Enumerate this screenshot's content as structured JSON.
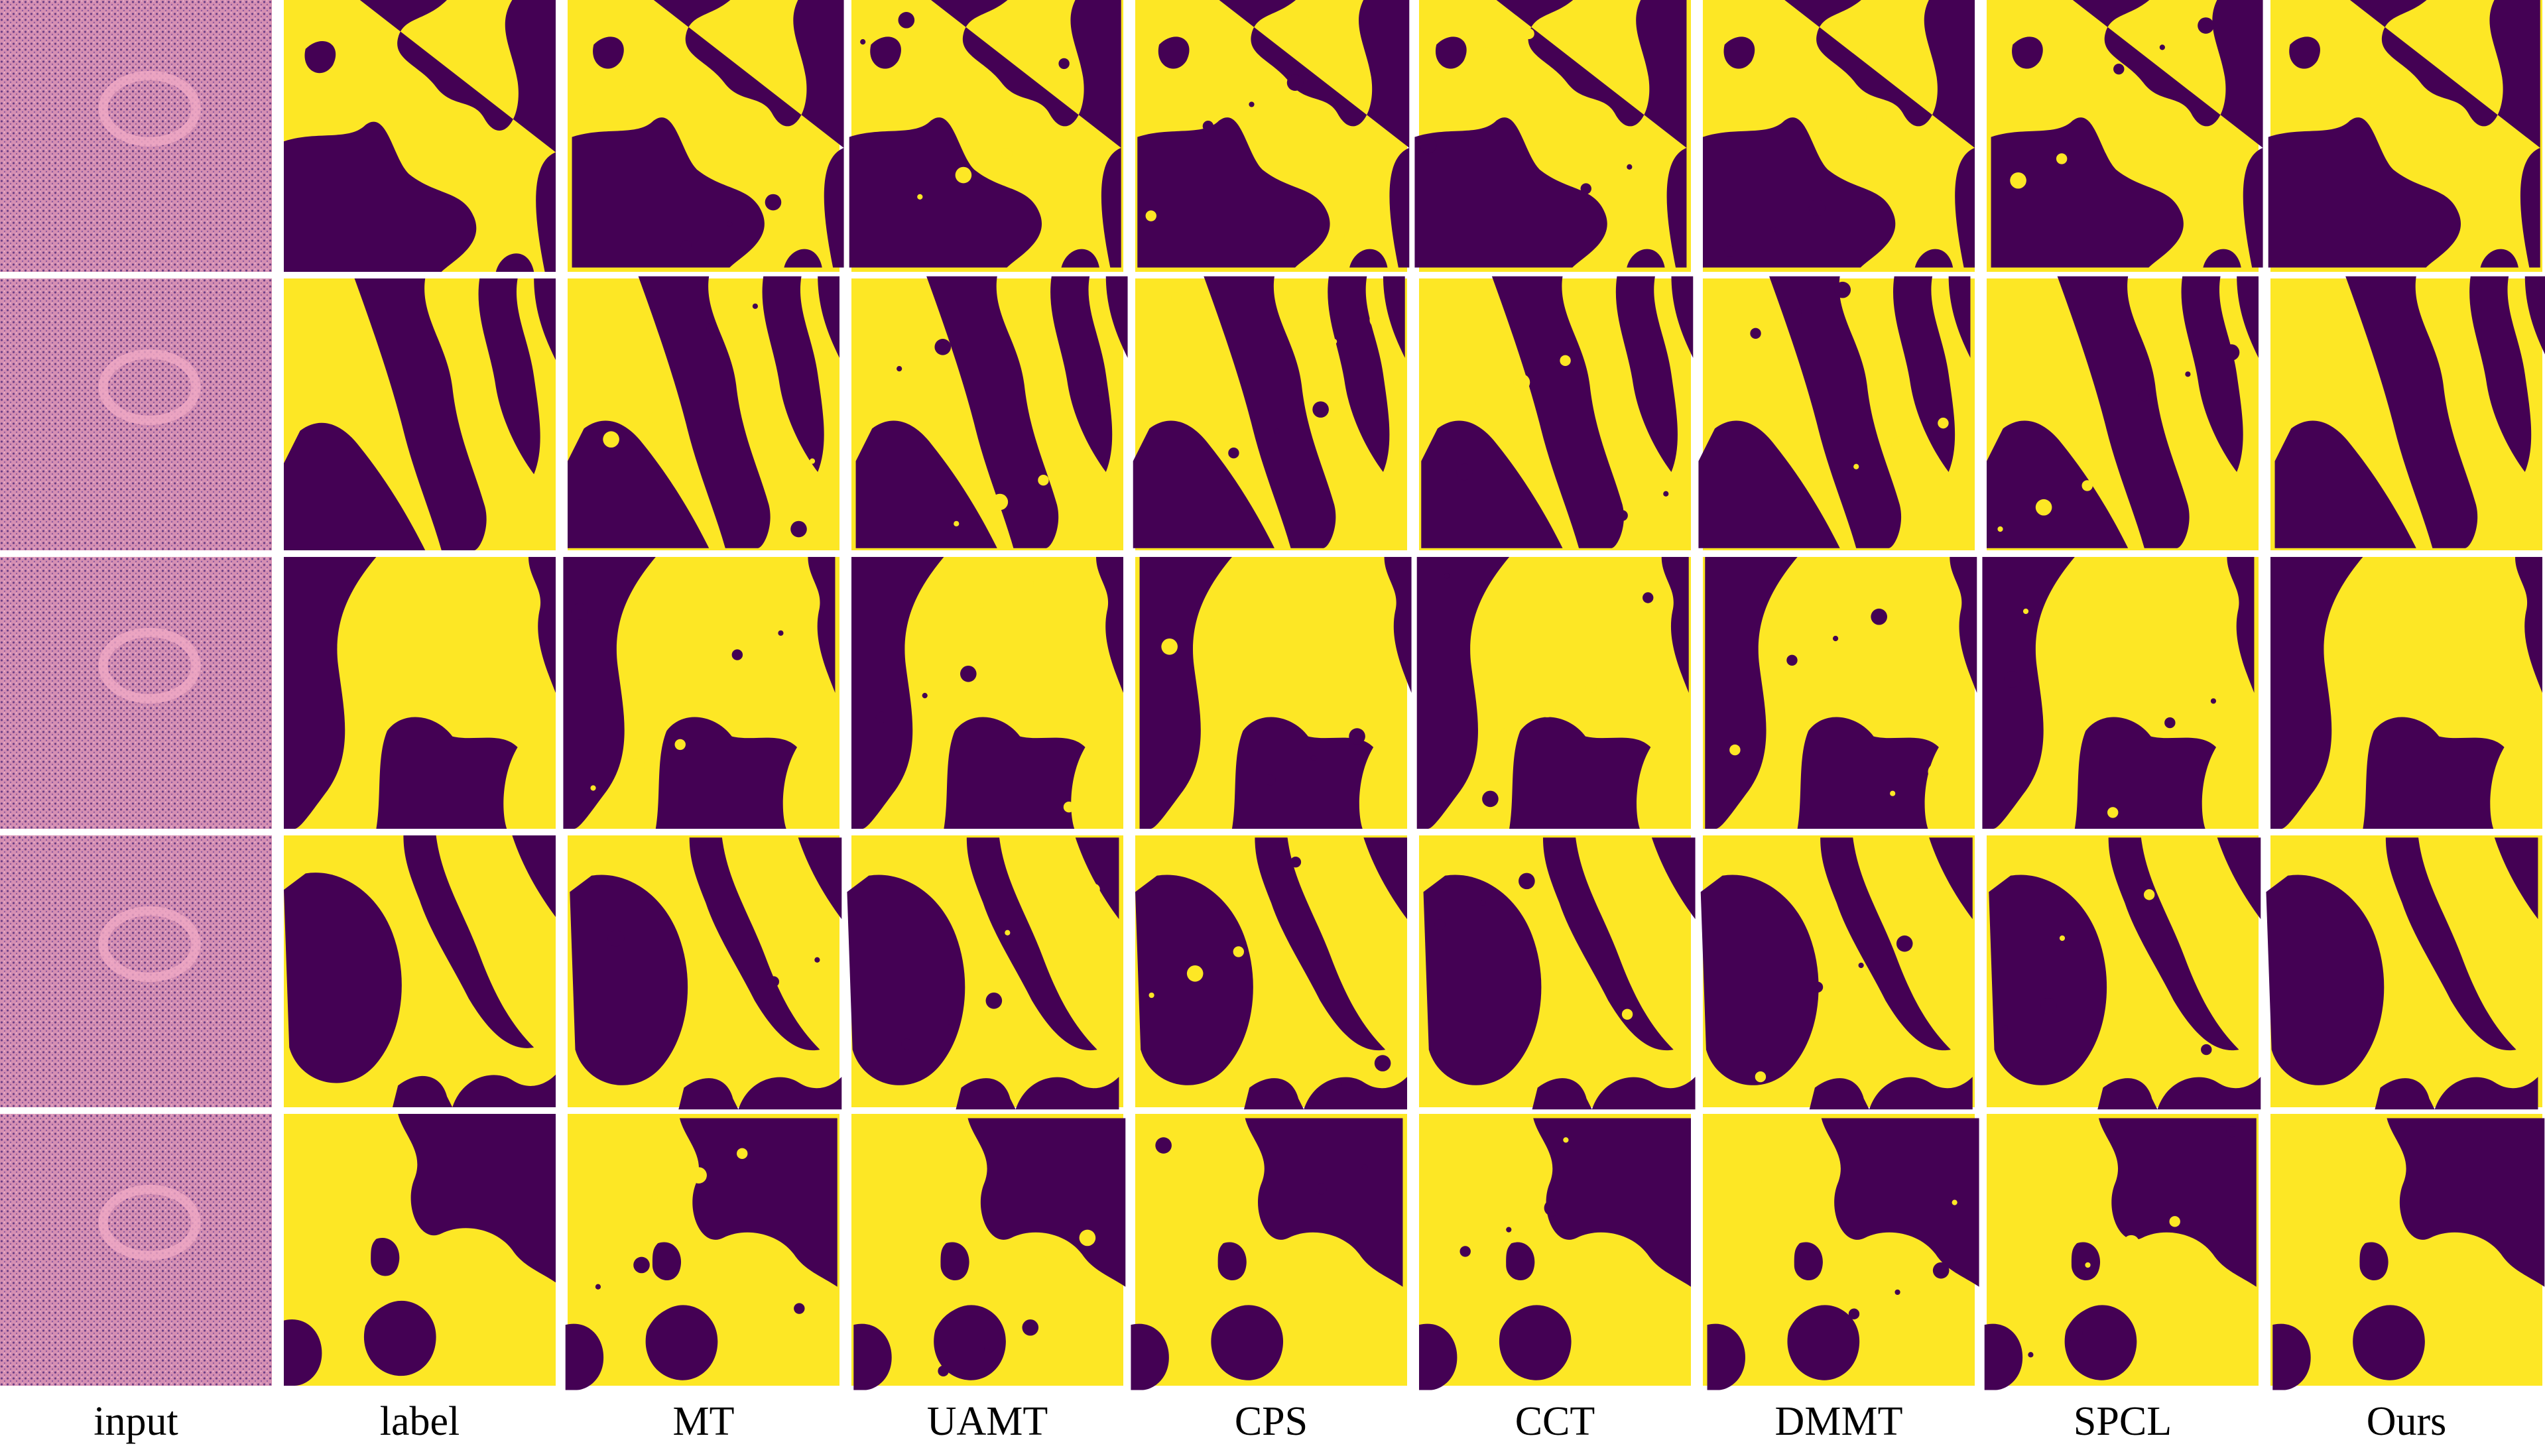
{
  "columns": [
    "input",
    "label",
    "MT",
    "UAMT",
    "CPS",
    "CCT",
    "DMMT",
    "SPCL",
    "Ours"
  ]
}
